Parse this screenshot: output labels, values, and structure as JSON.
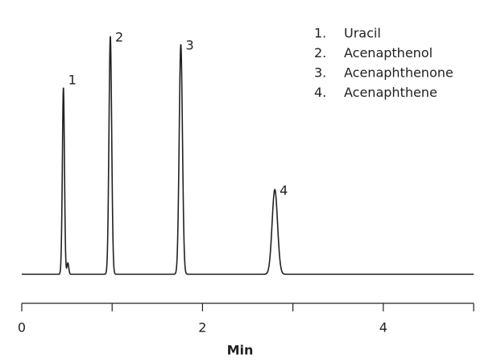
{
  "chart_data": {
    "type": "chromatogram",
    "x_label": "Min",
    "xlim": [
      0,
      5
    ],
    "xticks": [
      0,
      2,
      4
    ],
    "xminor_ticks": [
      1,
      3,
      5
    ],
    "ylim": [
      -30,
      310
    ],
    "color": "#222222",
    "peaks": [
      {
        "label": "1",
        "x": 0.46,
        "height": 242,
        "width": 0.012
      },
      {
        "label": "2",
        "x": 0.98,
        "height": 295,
        "width": 0.015
      },
      {
        "label": "3",
        "x": 1.76,
        "height": 285,
        "width": 0.018
      },
      {
        "label": "4",
        "x": 2.8,
        "height": 105,
        "width": 0.03
      }
    ],
    "disturbances": [
      {
        "x": 0.45,
        "height": -25,
        "width": 0.008
      },
      {
        "x": 0.51,
        "height": 14,
        "width": 0.01
      }
    ],
    "legend": [
      {
        "number": "1.",
        "name": "Uracil"
      },
      {
        "number": "2.",
        "name": "Acenapthenol"
      },
      {
        "number": "3.",
        "name": "Acenaphthenone"
      },
      {
        "number": "4.",
        "name": "Acenaphthene"
      }
    ]
  }
}
